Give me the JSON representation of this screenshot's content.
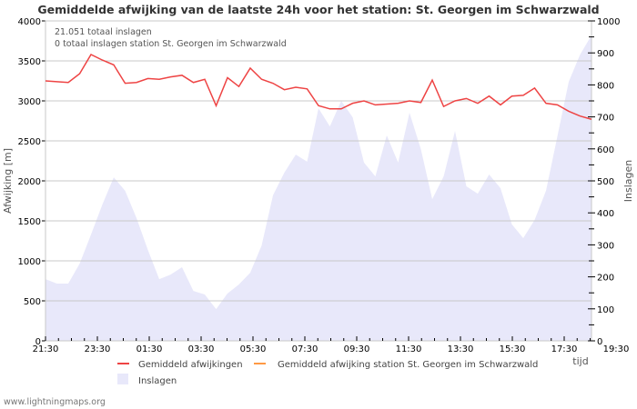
{
  "title": "Gemiddelde afwijking van de laatste 24h voor het station: St. Georgen im Schwarzwald",
  "info": [
    "21.051 totaal inslagen",
    "0 totaal inslagen station St. Georgen im Schwarzwald"
  ],
  "footer": "www.lightningmaps.org",
  "legend": [
    {
      "label": "Gemiddeld afwijkingen",
      "color": "#ee4444",
      "type": "line"
    },
    {
      "label": "Gemiddeld afwijking station St. Georgen im Schwarzwald",
      "color": "#ff9944",
      "type": "line"
    },
    {
      "label": "Inslagen",
      "color": "#e8e8fa",
      "type": "area"
    }
  ],
  "chart_data": {
    "type": "line",
    "title": "Gemiddelde afwijking van de laatste 24h voor het station: St. Georgen im Schwarzwald",
    "xlabel": "tijd",
    "ylabel": "Afwijking  [m]",
    "y2label": "Inslagen",
    "ylim": [
      0,
      4000
    ],
    "y2lim": [
      0,
      1000
    ],
    "yticks": [
      0,
      500,
      1000,
      1500,
      2000,
      2500,
      3000,
      3500,
      4000
    ],
    "y2ticks": [
      0,
      100,
      200,
      300,
      400,
      500,
      600,
      700,
      800,
      900,
      1000
    ],
    "xticks": [
      "21:30",
      "23:30",
      "01:30",
      "03:30",
      "05:30",
      "07:30",
      "09:30",
      "11:30",
      "13:30",
      "15:30",
      "17:30",
      "19:30"
    ],
    "grid": true,
    "series": [
      {
        "name": "Gemiddeld afwijkingen",
        "axis": "left",
        "color": "#ee4444",
        "values": [
          3250,
          3240,
          3230,
          3340,
          3580,
          3510,
          3450,
          3220,
          3230,
          3280,
          3270,
          3300,
          3320,
          3230,
          3270,
          2940,
          3290,
          3180,
          3410,
          3270,
          3220,
          3140,
          3170,
          3150,
          2940,
          2900,
          2900,
          2970,
          3000,
          2950,
          2960,
          2970,
          3000,
          2980,
          3260,
          2930,
          3000,
          3030,
          2970,
          3060,
          2950,
          3060,
          3070,
          3160,
          2970,
          2950,
          2870,
          2810,
          2770
        ]
      },
      {
        "name": "Gemiddeld afwijking station St. Georgen im Schwarzwald",
        "axis": "left",
        "color": "#ff9944",
        "values": []
      },
      {
        "name": "Inslagen",
        "axis": "right",
        "type": "area",
        "color": "#e8e8fa",
        "values": [
          193,
          179,
          179,
          241,
          332,
          426,
          511,
          469,
          384,
          284,
          193,
          207,
          230,
          156,
          145,
          99,
          148,
          176,
          213,
          298,
          455,
          526,
          582,
          560,
          727,
          670,
          750,
          699,
          557,
          514,
          642,
          557,
          713,
          599,
          443,
          514,
          656,
          483,
          460,
          520,
          477,
          364,
          321,
          378,
          469,
          639,
          810,
          895,
          955
        ]
      }
    ]
  }
}
